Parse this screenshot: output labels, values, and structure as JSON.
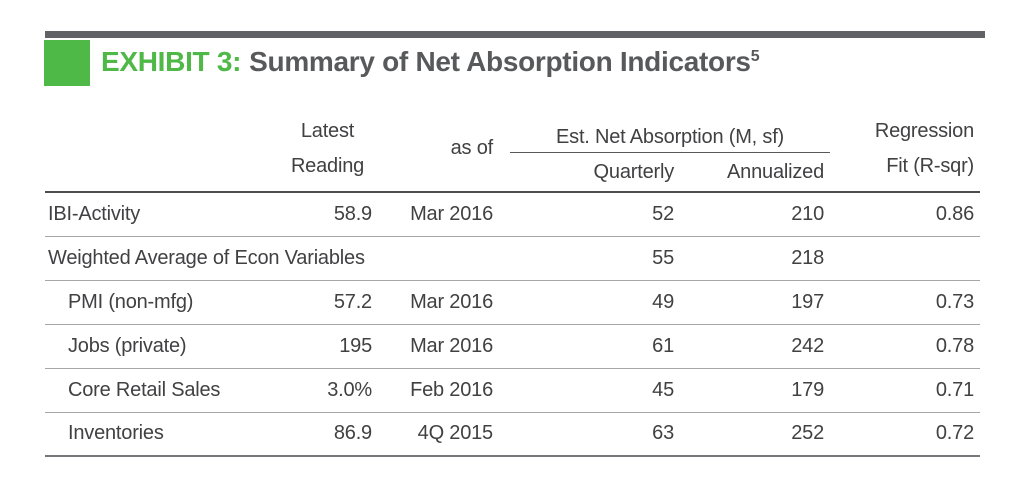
{
  "exhibit": {
    "label": "EXHIBIT 3:",
    "title": "Summary of Net Absorption Indicators",
    "title_superscript": "5"
  },
  "theme": {
    "accent_green": "#4FB948",
    "top_bar_gray": "#616265",
    "title_gray": "#58595B",
    "body_text": "#414042",
    "separator_light": "#A6A7A9",
    "separator_dark": "#4D4D4F"
  },
  "table": {
    "col_headers": {
      "latest_line1": "Latest",
      "latest_line2": "Reading",
      "as_of": "as of",
      "est_net_absorption": "Est. Net Absorption (M, sf)",
      "quarterly": "Quarterly",
      "annualized": "Annualized",
      "regression_line1": "Regression",
      "regression_line2": "Fit (R-sqr)"
    },
    "rows": [
      {
        "indicator": "IBI-Activity",
        "latest": "58.9",
        "as_of": "Mar 2016",
        "quarterly": "52",
        "annualized": "210",
        "rsqr": "0.86"
      },
      {
        "indicator": "Weighted Average of Econ Variables",
        "latest": "",
        "as_of": "",
        "quarterly": "55",
        "annualized": "218",
        "rsqr": ""
      },
      {
        "indicator": "PMI (non-mfg)",
        "latest": "57.2",
        "as_of": "Mar 2016",
        "quarterly": "49",
        "annualized": "197",
        "rsqr": "0.73"
      },
      {
        "indicator": "Jobs (private)",
        "latest": "195",
        "as_of": "Mar 2016",
        "quarterly": "61",
        "annualized": "242",
        "rsqr": "0.78"
      },
      {
        "indicator": "Core Retail Sales",
        "latest": "3.0%",
        "as_of": "Feb 2016",
        "quarterly": "45",
        "annualized": "179",
        "rsqr": "0.71"
      },
      {
        "indicator": "Inventories",
        "latest": "86.9",
        "as_of": "4Q 2015",
        "quarterly": "63",
        "annualized": "252",
        "rsqr": "0.72"
      }
    ]
  }
}
